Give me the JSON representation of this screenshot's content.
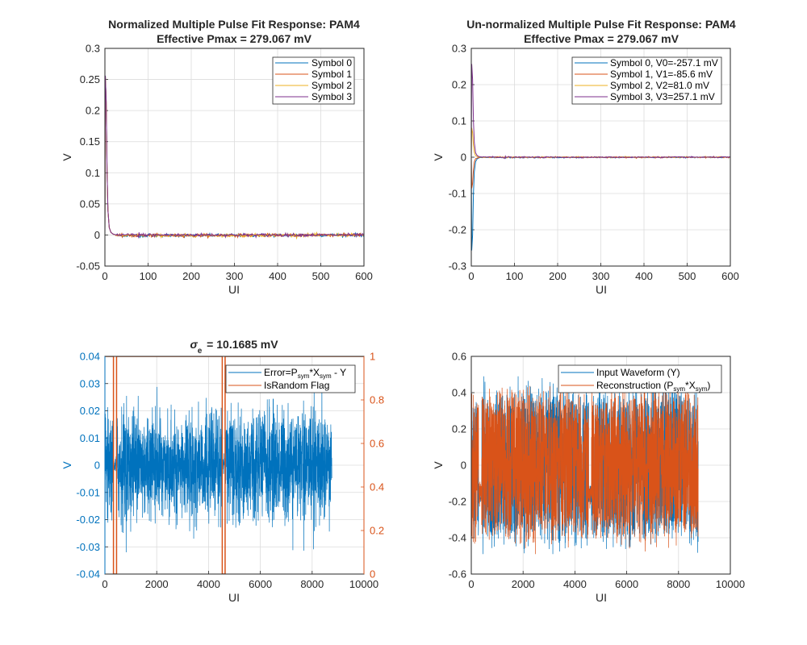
{
  "colors": {
    "blue": "#0072BD",
    "orange": "#D95319",
    "yellow": "#EDB120",
    "purple": "#7E2F8E",
    "green": "#77AC30",
    "lightblue": "#4DBEEE",
    "red": "#A2142F",
    "axis": "#262626",
    "grid": "#dcdcdc"
  },
  "chart_data": [
    {
      "type": "line",
      "title": [
        "Normalized Multiple Pulse Fit Response: PAM4",
        "Effective Pmax = 279.067 mV"
      ],
      "xlabel": "UI",
      "ylabel": "V",
      "xlim": [
        0,
        600
      ],
      "ylim": [
        -0.05,
        0.3
      ],
      "xticks": [
        "0",
        "100",
        "200",
        "300",
        "400",
        "500",
        "600"
      ],
      "yticks": [
        "-0.05",
        "0",
        "0.05",
        "0.1",
        "0.15",
        "0.2",
        "0.25",
        "0.3"
      ],
      "grid": true,
      "legend": "top-right",
      "series": [
        {
          "name": "Symbol 0",
          "color": "#0072BD",
          "points": [
            [
              0,
              0
            ],
            [
              1,
              0.256
            ],
            [
              3,
              0.215
            ],
            [
              5,
              0.1
            ],
            [
              7,
              0.04
            ],
            [
              10,
              0.012
            ],
            [
              14,
              0.004
            ],
            [
              20,
              0.001
            ],
            [
              30,
              -0.001
            ],
            [
              600,
              0
            ]
          ]
        },
        {
          "name": "Symbol 1",
          "color": "#D95319",
          "points": [
            [
              0,
              0
            ],
            [
              1,
              0.255
            ],
            [
              3,
              0.214
            ],
            [
              5,
              0.1
            ],
            [
              7,
              0.04
            ],
            [
              10,
              0.012
            ],
            [
              14,
              0.004
            ],
            [
              20,
              0.001
            ],
            [
              30,
              -0.001
            ],
            [
              600,
              0
            ]
          ]
        },
        {
          "name": "Symbol 2",
          "color": "#EDB120",
          "points": [
            [
              0,
              0
            ],
            [
              1,
              0.254
            ],
            [
              3,
              0.213
            ],
            [
              5,
              0.1
            ],
            [
              7,
              0.04
            ],
            [
              10,
              0.012
            ],
            [
              14,
              0.004
            ],
            [
              20,
              0.001
            ],
            [
              30,
              -0.001
            ],
            [
              600,
              0
            ]
          ]
        },
        {
          "name": "Symbol 3",
          "color": "#7E2F8E",
          "points": [
            [
              0,
              0
            ],
            [
              1,
              0.256
            ],
            [
              3,
              0.216
            ],
            [
              5,
              0.1
            ],
            [
              7,
              0.04
            ],
            [
              10,
              0.012
            ],
            [
              14,
              0.004
            ],
            [
              20,
              0.001
            ],
            [
              30,
              0
            ],
            [
              75,
              0
            ],
            [
              78,
              -0.004
            ],
            [
              79,
              0.004
            ],
            [
              80,
              0
            ],
            [
              600,
              0
            ]
          ]
        }
      ]
    },
    {
      "type": "line",
      "title": [
        "Un-normalized Multiple Pulse Fit Response: PAM4",
        "Effective Pmax = 279.067 mV"
      ],
      "xlabel": "UI",
      "ylabel": "V",
      "xlim": [
        0,
        600
      ],
      "ylim": [
        -0.3,
        0.3
      ],
      "xticks": [
        "0",
        "100",
        "200",
        "300",
        "400",
        "500",
        "600"
      ],
      "yticks": [
        "-0.3",
        "-0.2",
        "-0.1",
        "0",
        "0.1",
        "0.2",
        "0.3"
      ],
      "grid": true,
      "legend": "top-right",
      "series": [
        {
          "name": "Symbol 0, V0=-257.1 mV",
          "color": "#0072BD",
          "points": [
            [
              0,
              0
            ],
            [
              1,
              -0.257
            ],
            [
              3,
              -0.215
            ],
            [
              5,
              -0.1
            ],
            [
              7,
              -0.04
            ],
            [
              10,
              -0.012
            ],
            [
              14,
              -0.004
            ],
            [
              20,
              -0.001
            ],
            [
              600,
              0
            ]
          ]
        },
        {
          "name": "Symbol 1, V1=-85.6 mV",
          "color": "#D95319",
          "points": [
            [
              0,
              0
            ],
            [
              1,
              -0.0856
            ],
            [
              3,
              -0.072
            ],
            [
              5,
              -0.034
            ],
            [
              7,
              -0.013
            ],
            [
              10,
              -0.004
            ],
            [
              20,
              0
            ],
            [
              600,
              0
            ]
          ]
        },
        {
          "name": "Symbol 2, V2=81.0 mV",
          "color": "#EDB120",
          "points": [
            [
              0,
              0
            ],
            [
              1,
              0.081
            ],
            [
              3,
              0.068
            ],
            [
              5,
              0.032
            ],
            [
              7,
              0.013
            ],
            [
              10,
              0.004
            ],
            [
              20,
              0
            ],
            [
              600,
              0
            ]
          ]
        },
        {
          "name": "Symbol 3, V3=257.1 mV",
          "color": "#7E2F8E",
          "points": [
            [
              0,
              0
            ],
            [
              1,
              0.257
            ],
            [
              3,
              0.215
            ],
            [
              5,
              0.1
            ],
            [
              7,
              0.04
            ],
            [
              10,
              0.012
            ],
            [
              14,
              0.004
            ],
            [
              20,
              0.001
            ],
            [
              75,
              0
            ],
            [
              78,
              -0.003
            ],
            [
              79,
              0.003
            ],
            [
              80,
              0
            ],
            [
              600,
              0
            ]
          ]
        }
      ]
    },
    {
      "type": "line",
      "title": "σe = 10.1685 mV",
      "xlabel": "UI",
      "ylabel": "V",
      "xlim": [
        0,
        10000
      ],
      "ylim": [
        -0.04,
        0.04
      ],
      "xticks": [
        "0",
        "2000",
        "4000",
        "6000",
        "8000",
        "10000"
      ],
      "yticks": [
        "-0.04",
        "-0.03",
        "-0.02",
        "-0.01",
        "0",
        "0.01",
        "0.02",
        "0.03",
        "0.04"
      ],
      "y2lim": [
        0,
        1
      ],
      "y2ticks": [
        "0",
        "0.2",
        "0.4",
        "0.6",
        "0.8",
        "1"
      ],
      "grid": true,
      "legend": "top-right",
      "series": [
        {
          "name": "Error=Psym*Xsym - Y",
          "color": "#0072BD",
          "axis": "left",
          "noise": {
            "x_range": [
              0,
              8760
            ],
            "std": 0.01017,
            "envelope": 0.025,
            "peak": 0.032
          }
        },
        {
          "name": "IsRandom Flag",
          "color": "#D95319",
          "axis": "right",
          "points": [
            [
              0,
              1
            ],
            [
              330,
              1
            ],
            [
              330,
              0
            ],
            [
              450,
              0
            ],
            [
              450,
              1
            ],
            [
              4530,
              1
            ],
            [
              4530,
              0
            ],
            [
              4640,
              0
            ],
            [
              4640,
              1
            ],
            [
              10000,
              1
            ]
          ]
        }
      ]
    },
    {
      "type": "line",
      "title": "",
      "xlabel": "UI",
      "ylabel": "V",
      "xlim": [
        0,
        10000
      ],
      "ylim": [
        -0.6,
        0.6
      ],
      "xticks": [
        "0",
        "2000",
        "4000",
        "6000",
        "8000",
        "10000"
      ],
      "yticks": [
        "-0.6",
        "-0.4",
        "-0.2",
        "0",
        "0.2",
        "0.4",
        "0.6"
      ],
      "grid": true,
      "legend": "top-right",
      "series": [
        {
          "name": "Input Waveform (Y)",
          "color": "#0072BD",
          "noise": {
            "x_range": [
              0,
              8760
            ],
            "levels": [
              -0.3,
              -0.1,
              0.1,
              0.3
            ],
            "amplitude": 0.5
          }
        },
        {
          "name": "Reconstruction (Psym*Xsym)",
          "color": "#D95319",
          "noise": {
            "x_range": [
              0,
              8760
            ],
            "levels": [
              -0.3,
              -0.1,
              0.1,
              0.3
            ],
            "amplitude": 0.5
          }
        }
      ]
    }
  ]
}
